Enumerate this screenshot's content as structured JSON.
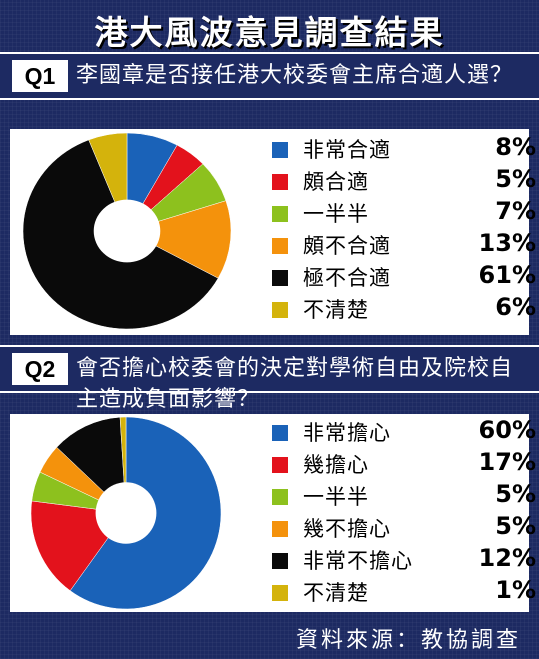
{
  "title": "港大風波意見調查結果",
  "source": "資料來源：教協調查",
  "chart_data": [
    {
      "type": "pie",
      "donut": true,
      "question_tag": "Q1",
      "question": "李國章是否接任港大校委會主席合適人選？",
      "categories": [
        "非常合適",
        "頗合適",
        "一半半",
        "頗不合適",
        "極不合適",
        "不清楚"
      ],
      "values": [
        8,
        5,
        7,
        13,
        61,
        6
      ],
      "value_labels": [
        "8%",
        "5%",
        "7%",
        "13%",
        "61%",
        "6%"
      ],
      "colors": [
        "#1a62b8",
        "#e3121c",
        "#8dc11e",
        "#f4920c",
        "#0a0a0a",
        "#d4b30c"
      ],
      "legend_position": "right"
    },
    {
      "type": "pie",
      "donut": true,
      "question_tag": "Q2",
      "question": "會否擔心校委會的決定對學術自由及院校自主造成負面影響？",
      "categories": [
        "非常擔心",
        "幾擔心",
        "一半半",
        "幾不擔心",
        "非常不擔心",
        "不清楚"
      ],
      "values": [
        60,
        17,
        5,
        5,
        12,
        1
      ],
      "value_labels": [
        "60%",
        "17%",
        "5%",
        "5%",
        "12%",
        "1%"
      ],
      "colors": [
        "#1a62b8",
        "#e3121c",
        "#8dc11e",
        "#f4920c",
        "#0a0a0a",
        "#d4b30c"
      ],
      "legend_position": "right"
    }
  ]
}
